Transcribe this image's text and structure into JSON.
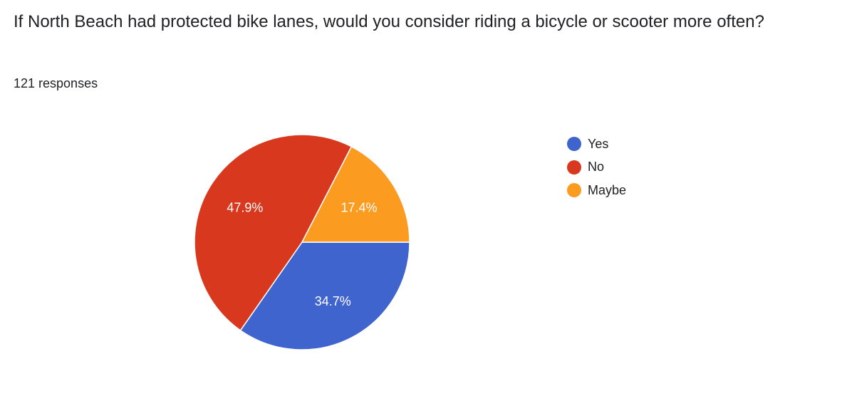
{
  "question": "If North Beach had protected bike lanes, would you consider riding a bicycle or scooter more often?",
  "responses_label": "121 responses",
  "chart_data": {
    "type": "pie",
    "title": "If North Beach had protected bike lanes, would you consider riding a bicycle or scooter more often?",
    "total_responses": 121,
    "categories": [
      "Yes",
      "No",
      "Maybe"
    ],
    "values": [
      34.7,
      47.9,
      17.4
    ],
    "labels": [
      "34.7%",
      "47.9%",
      "17.4%"
    ],
    "colors": [
      "#3f64ce",
      "#d8381e",
      "#fb9b1f"
    ],
    "legend_position": "right",
    "start_angle": "3 o'clock, clockwise"
  }
}
